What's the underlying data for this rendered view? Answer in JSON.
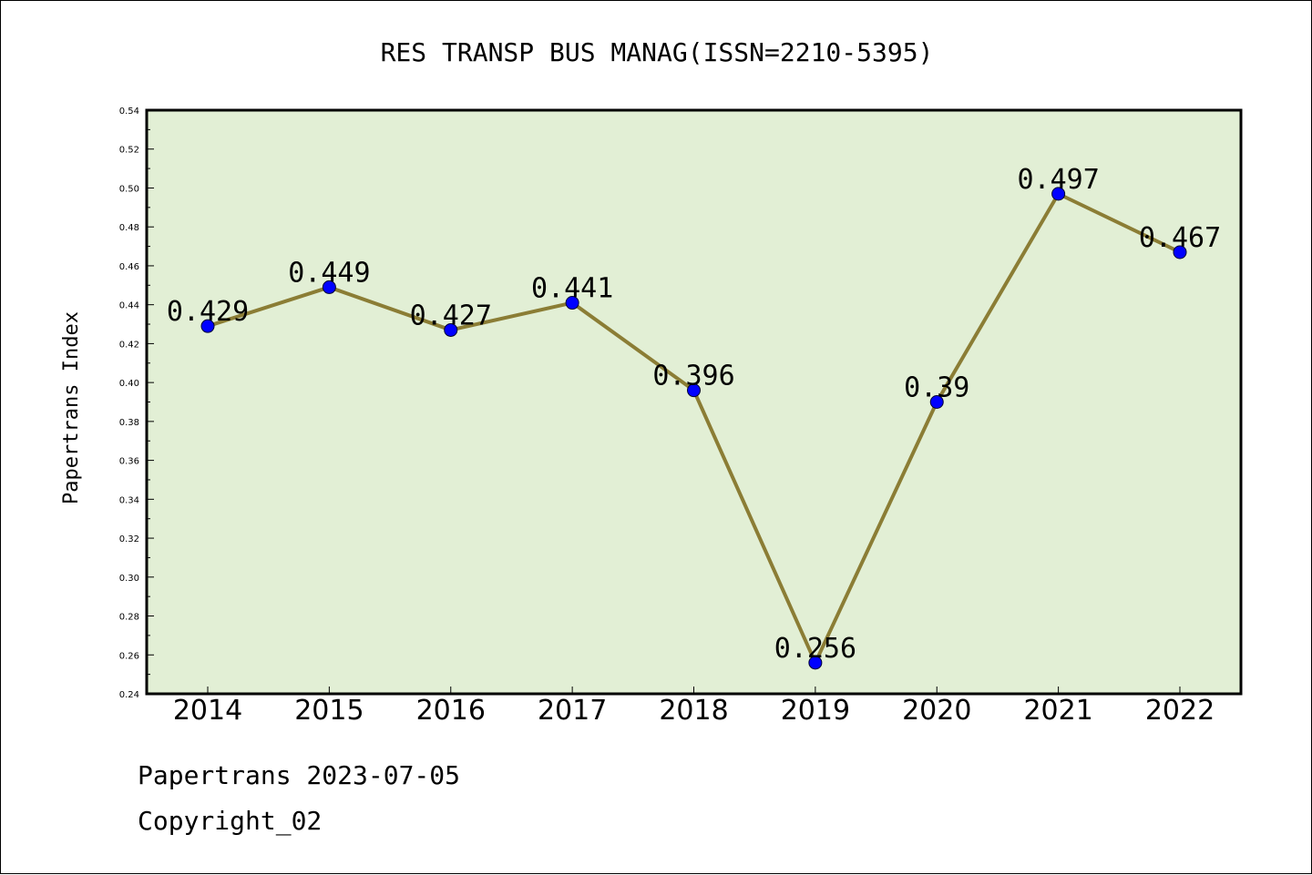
{
  "chart_data": {
    "type": "line",
    "title": "RES TRANSP BUS MANAG(ISSN=2210-5395)",
    "xlabel": "",
    "ylabel": "Papertrans Index",
    "categories": [
      "2014",
      "2015",
      "2016",
      "2017",
      "2018",
      "2019",
      "2020",
      "2021",
      "2022"
    ],
    "values": [
      0.429,
      0.449,
      0.427,
      0.441,
      0.396,
      0.256,
      0.39,
      0.497,
      0.467
    ],
    "data_labels": [
      "0.429",
      "0.449",
      "0.427",
      "0.441",
      "0.396",
      "0.256",
      "0.39",
      "0.497",
      "0.467"
    ],
    "ylim": [
      0.24,
      0.54
    ],
    "yticks": [
      "0.24",
      "0.26",
      "0.28",
      "0.30",
      "0.32",
      "0.34",
      "0.36",
      "0.38",
      "0.40",
      "0.42",
      "0.44",
      "0.46",
      "0.48",
      "0.50",
      "0.52",
      "0.54"
    ],
    "grid": false,
    "legend": "none",
    "colors": {
      "plot_background": "#e2efd5",
      "line": "#8b7d35",
      "marker": "#0000ff"
    }
  },
  "footer": {
    "line1": "Papertrans 2023-07-05",
    "line2": "Copyright_02"
  }
}
